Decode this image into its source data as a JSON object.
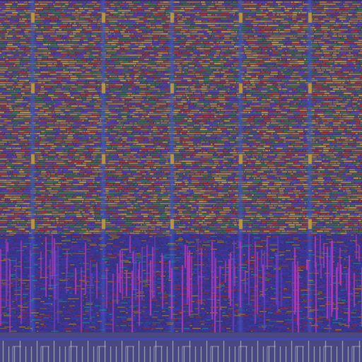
{
  "palette": {
    "background": "#3a2f6e",
    "metal1_red": "#c0392b",
    "metal_orange": "#c8822e",
    "metal_gold": "#caa035",
    "metal_green": "#3f7f3a",
    "metal_teal": "#2aa3b5",
    "metal_purple": "#6a3fbf",
    "metal_blue": "#3f47c9",
    "metal_magenta": "#b03ab8",
    "rail_blue": "#3b5bbf",
    "hatch_gray": "#8a8a9a",
    "pin_white": "#d8d8e8"
  },
  "layout_regions": [
    {
      "name": "standard-cell-array",
      "pattern": "dense-rows"
    },
    {
      "name": "routing-channel",
      "pattern": "vertical-wires"
    },
    {
      "name": "io-pin-row",
      "pattern": "pins"
    }
  ],
  "icons": {
    "power-rail": "vertical-band",
    "pin": "tick"
  }
}
